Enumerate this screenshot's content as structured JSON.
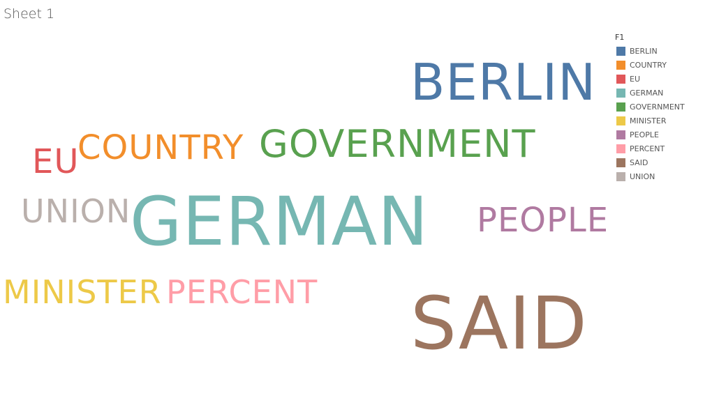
{
  "sheet": {
    "title": "Sheet 1"
  },
  "legend": {
    "title": "F1"
  },
  "chart_data": {
    "type": "wordcloud",
    "legend_placement": "top-right",
    "words": [
      {
        "text": "BERLIN",
        "color": "#4e79a7",
        "weight": 6
      },
      {
        "text": "COUNTRY",
        "color": "#f28e2b",
        "weight": 4
      },
      {
        "text": "EU",
        "color": "#e15759",
        "weight": 4
      },
      {
        "text": "GERMAN",
        "color": "#76b7b2",
        "weight": 10
      },
      {
        "text": "GOVERNMENT",
        "color": "#59a14f",
        "weight": 5
      },
      {
        "text": "MINISTER",
        "color": "#edc948",
        "weight": 4
      },
      {
        "text": "PEOPLE",
        "color": "#b07aa1",
        "weight": 4
      },
      {
        "text": "PERCENT",
        "color": "#ff9da7",
        "weight": 4
      },
      {
        "text": "SAID",
        "color": "#9c755f",
        "weight": 10
      },
      {
        "text": "UNION",
        "color": "#bab0ac",
        "weight": 4
      }
    ]
  }
}
